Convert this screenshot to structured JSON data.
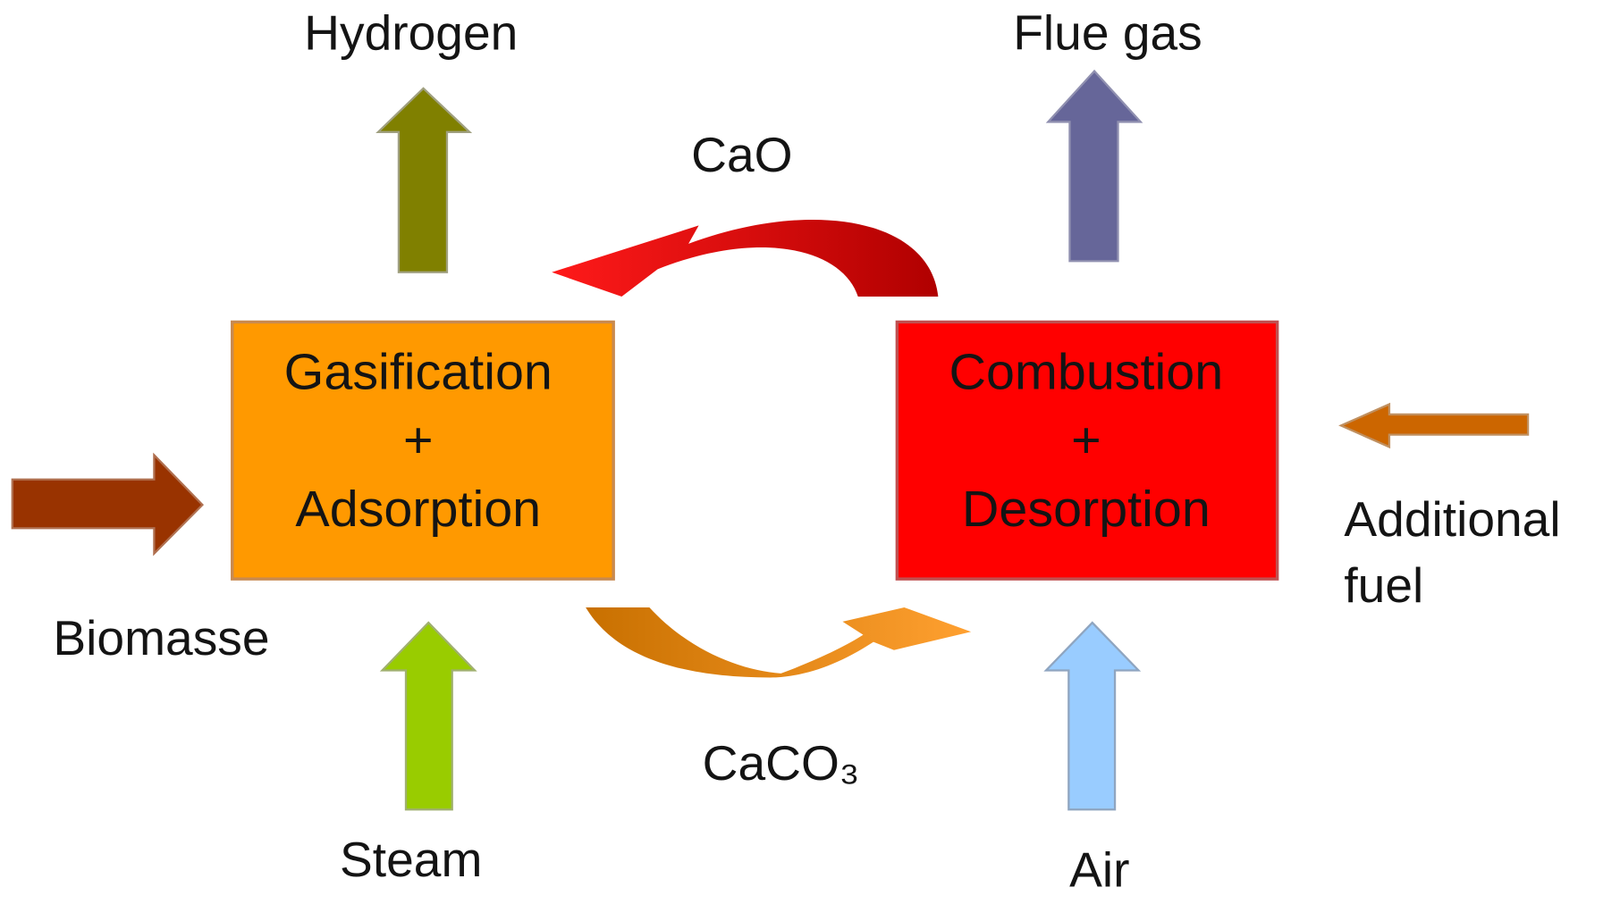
{
  "nodes": [
    {
      "label": [
        "Gasification",
        "+",
        "Adsorption"
      ]
    },
    {
      "label": [
        "Combustion",
        "+",
        "Desorption"
      ]
    }
  ],
  "flows": {
    "hydrogen": "Hydrogen",
    "flue_gas": "Flue gas",
    "cao": "CaO",
    "caco3": "CaCO₃",
    "biomasse": "Biomasse",
    "steam": "Steam",
    "air": "Air",
    "additional_fuel": [
      "Additional",
      "fuel"
    ]
  }
}
